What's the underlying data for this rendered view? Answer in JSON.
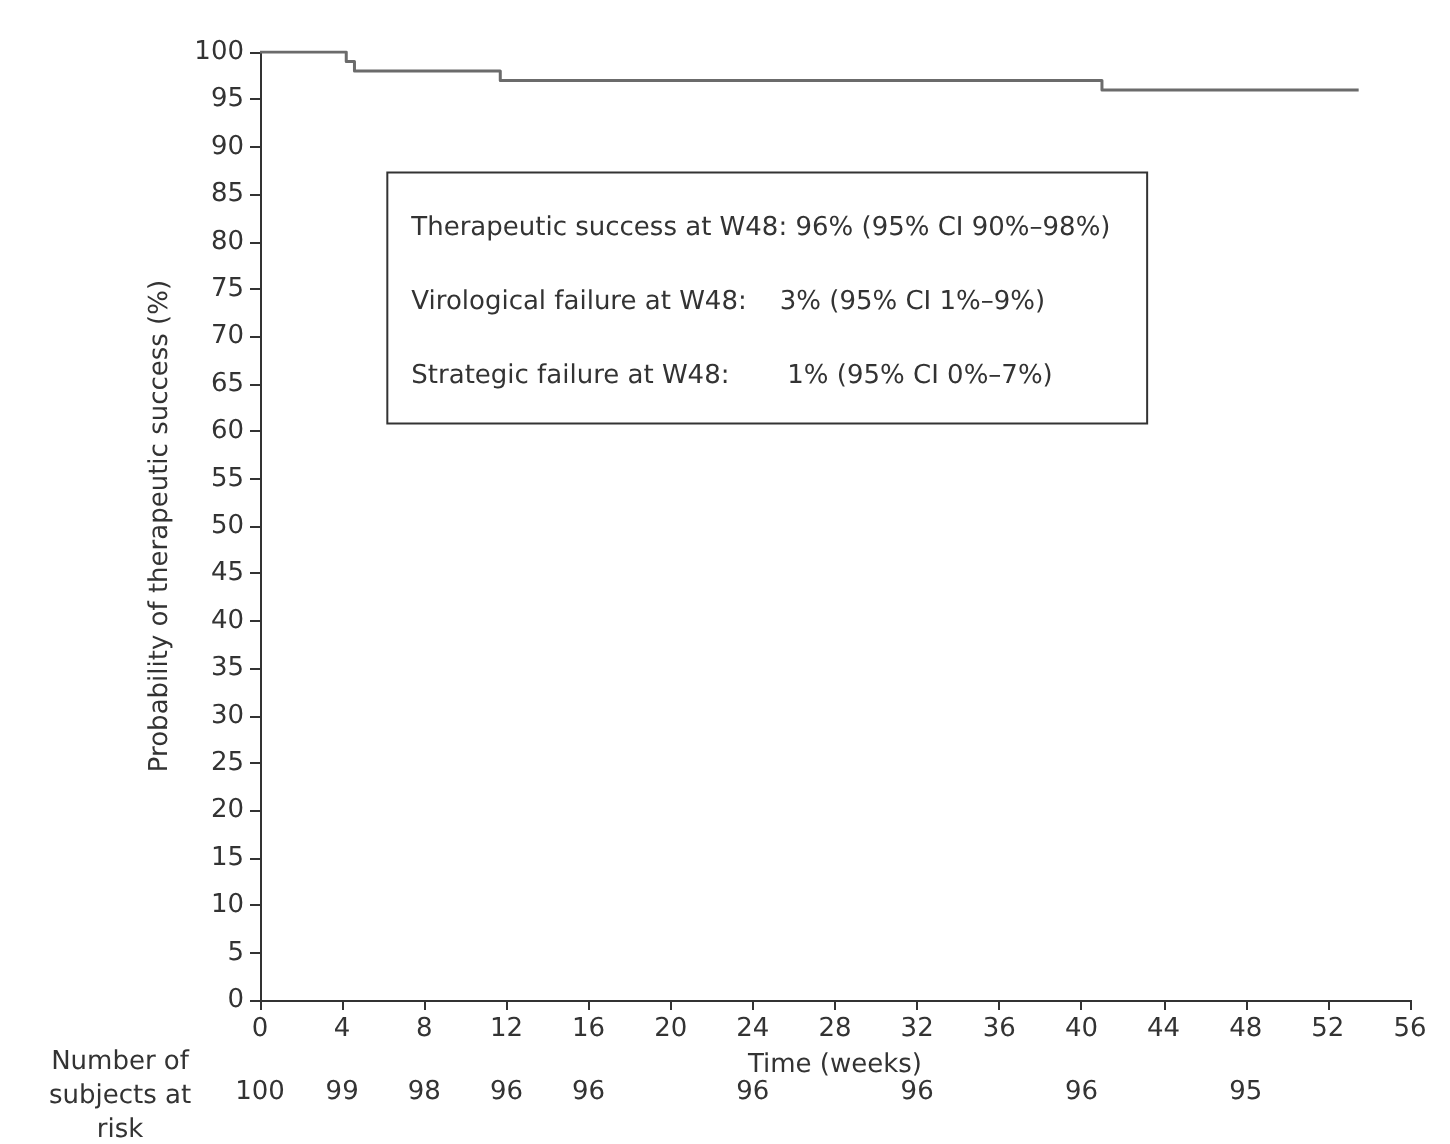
{
  "chart_data": {
    "type": "step",
    "xlabel": "Time (weeks)",
    "ylabel": "Probability of therapeutic success (%)",
    "series": [
      {
        "color": "#6b6b6b",
        "x": [
          0,
          4.2,
          4.6,
          11.7,
          41,
          53.5
        ],
        "values": [
          100,
          99,
          98,
          97,
          96,
          96
        ]
      }
    ],
    "xlim": [
      0,
      56
    ],
    "xticks": [
      0,
      4,
      8,
      12,
      16,
      20,
      24,
      28,
      32,
      36,
      40,
      44,
      48,
      52,
      56
    ],
    "ylim": [
      0,
      100
    ],
    "yticks": [
      0,
      5,
      10,
      15,
      20,
      25,
      30,
      35,
      40,
      45,
      50,
      55,
      60,
      65,
      70,
      75,
      80,
      85,
      90,
      95,
      100
    ],
    "grid": false,
    "annotations": [
      "Therapeutic success at W48: 96% (95% CI 90%–98%)",
      "Virological failure at W48:    3% (95% CI 1%–9%)",
      "Strategic failure at W48:       1% (95% CI 0%–7%)",
      "Number of subjects at risk",
      "100",
      "99",
      "98",
      "96",
      "96",
      "96",
      "96",
      "96",
      "95"
    ]
  }
}
